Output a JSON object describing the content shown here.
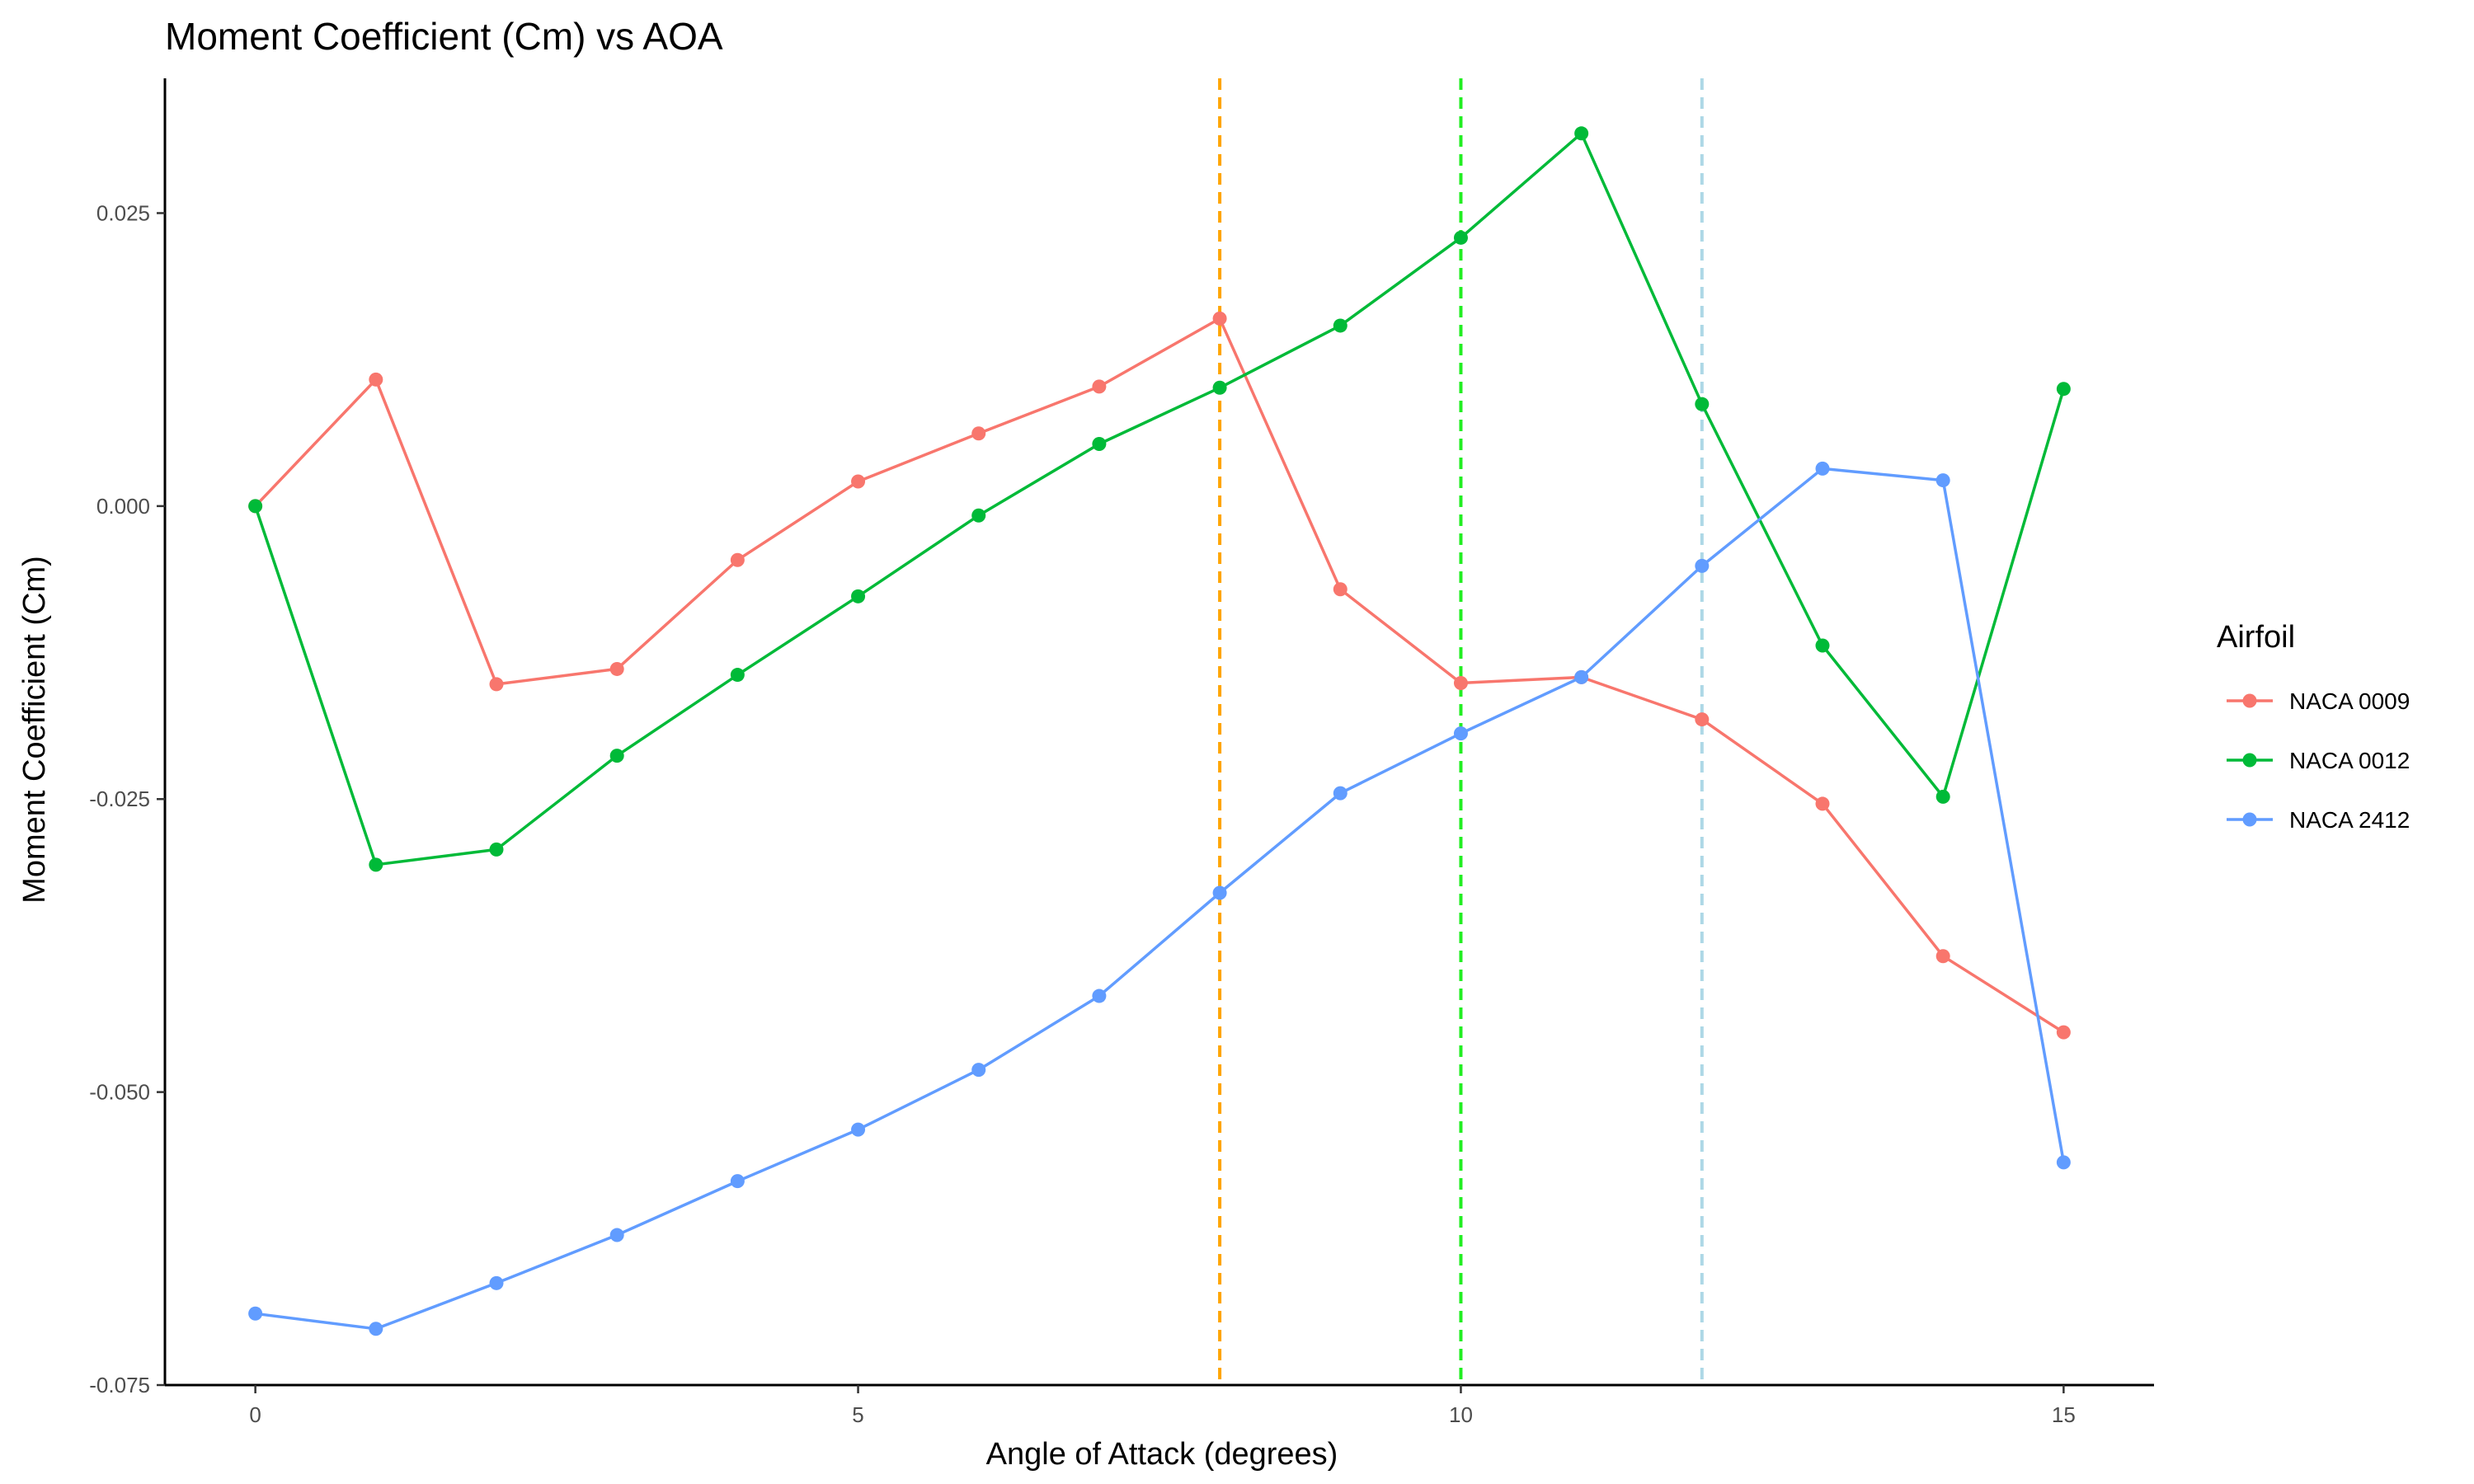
{
  "chart_data": {
    "type": "line",
    "title": "Moment Coefficient (Cm) vs AOA",
    "xlabel": "Angle of Attack (degrees)",
    "ylabel": "Moment Coefficient (Cm)",
    "xlim": [
      -0.75,
      15.75
    ],
    "ylim": [
      -0.075,
      0.0365
    ],
    "x_ticks": [
      0,
      5,
      10,
      15
    ],
    "x_tick_labels": [
      "0",
      "5",
      "10",
      "15"
    ],
    "y_ticks": [
      -0.075,
      -0.05,
      -0.025,
      0.0,
      0.025
    ],
    "y_tick_labels": [
      "-0.075",
      "-0.050",
      "-0.025",
      "0.000",
      "0.025"
    ],
    "grid": false,
    "legend": {
      "title": "Airfoil",
      "placement": "right"
    },
    "x": [
      0,
      1,
      2,
      3,
      4,
      5,
      6,
      7,
      8,
      9,
      10,
      11,
      12,
      13,
      14,
      15
    ],
    "series": [
      {
        "name": "NACA 0009",
        "color": "#F8766D",
        "values": [
          0.0,
          0.0108,
          -0.0152,
          -0.0139,
          -0.0046,
          0.0021,
          0.0062,
          0.0102,
          0.016,
          -0.0071,
          -0.0151,
          -0.0146,
          -0.0182,
          -0.0254,
          -0.0384,
          -0.0449
        ]
      },
      {
        "name": "NACA 0012",
        "color": "#00BA38",
        "values": [
          0.0,
          -0.0306,
          -0.0293,
          -0.0213,
          -0.0144,
          -0.0077,
          -0.0008,
          0.0053,
          0.0101,
          0.0154,
          0.0229,
          0.0318,
          0.0087,
          -0.0119,
          -0.0248,
          0.01
        ]
      },
      {
        "name": "NACA 2412",
        "color": "#619CFF",
        "values": [
          -0.0689,
          -0.0702,
          -0.0663,
          -0.0622,
          -0.0576,
          -0.0532,
          -0.0481,
          -0.0418,
          -0.033,
          -0.0245,
          -0.0194,
          -0.0146,
          -0.0051,
          0.0032,
          0.0022,
          -0.056
        ]
      }
    ],
    "reference_lines": [
      {
        "x": 8,
        "color": "#FFA500"
      },
      {
        "x": 10,
        "color": "#22EE22"
      },
      {
        "x": 12,
        "color": "#ADD8E6"
      }
    ]
  }
}
